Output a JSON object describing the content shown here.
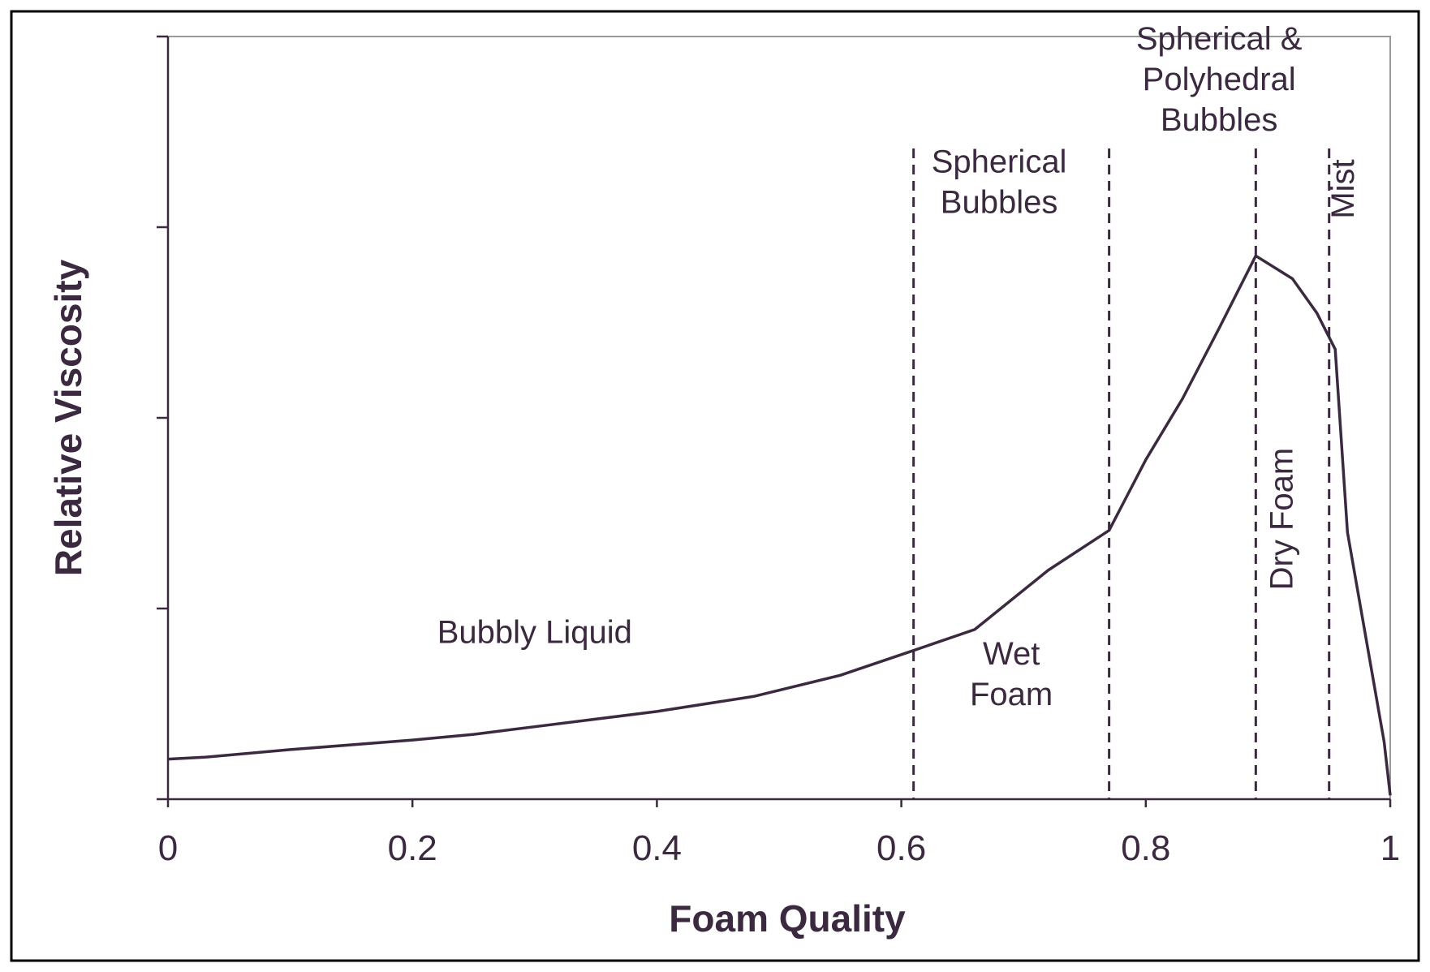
{
  "chart_data": {
    "type": "line",
    "xlabel": "Foam Quality",
    "ylabel": "Relative Viscosity",
    "xlim": [
      0,
      1
    ],
    "ylim": [
      0,
      4
    ],
    "x_ticks": [
      0,
      0.2,
      0.4,
      0.6,
      0.8,
      1
    ],
    "x_tick_labels": [
      "0",
      "0.2",
      "0.4",
      "0.6",
      "0.8",
      "1"
    ],
    "y_ticks": [
      0,
      1,
      2,
      3,
      4
    ],
    "y_tick_labels_shown": false,
    "grid": false,
    "legend": "none",
    "series": [
      {
        "x": [
          0,
          0.03,
          0.1,
          0.2,
          0.25,
          0.3,
          0.4,
          0.48,
          0.55,
          0.61,
          0.66,
          0.72,
          0.77,
          0.8,
          0.83,
          0.86,
          0.89,
          0.92,
          0.94,
          0.955,
          0.965,
          0.98,
          0.995,
          1.0
        ],
        "y": [
          0.21,
          0.22,
          0.26,
          0.31,
          0.34,
          0.38,
          0.46,
          0.54,
          0.65,
          0.78,
          0.89,
          1.2,
          1.41,
          1.78,
          2.1,
          2.47,
          2.85,
          2.73,
          2.55,
          2.36,
          1.4,
          0.85,
          0.3,
          0.02
        ]
      }
    ],
    "boundaries": [
      0.61,
      0.77,
      0.89,
      0.95
    ],
    "regions": [
      {
        "id": "bubbly-liquid",
        "lines": [
          "Bubbly Liquid"
        ],
        "x": 0.3,
        "y": 0.82
      },
      {
        "id": "spherical-bubbles",
        "lines": [
          "Spherical",
          "Bubbles"
        ],
        "x": 0.68,
        "y": 3.18
      },
      {
        "id": "wet-foam",
        "lines": [
          "Wet",
          "Foam"
        ],
        "x": 0.69,
        "y": 0.6
      },
      {
        "id": "spherical-polyhedral",
        "lines": [
          "Spherical &",
          "Polyhedral",
          "Bubbles"
        ],
        "x": 0.86,
        "y": 3.72
      },
      {
        "id": "dry-foam",
        "lines": [
          "Dry Foam"
        ],
        "x": 0.92,
        "y": 1.47,
        "rotated": true
      },
      {
        "id": "mist",
        "lines": [
          "Mist"
        ],
        "x": 0.97,
        "y": 3.2,
        "rotated": true
      }
    ],
    "colors": {
      "line": "#3b2a3f",
      "axis": "#3b2a3f",
      "frame": "#000000",
      "plot_border": "#999999"
    }
  }
}
